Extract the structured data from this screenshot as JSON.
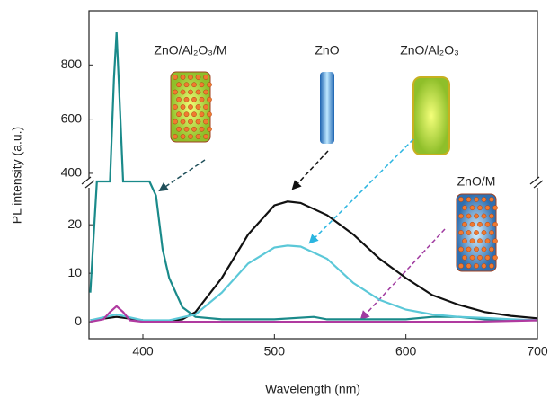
{
  "chart_data": {
    "type": "line",
    "x_label": "Wavelength (nm)",
    "y_label": "PL intensity (a.u.)",
    "xlim": [
      359,
      700
    ],
    "xticks": [
      400,
      500,
      600,
      700
    ],
    "ylim": [
      -3.5,
      1000
    ],
    "ybreak": [
      28,
      360
    ],
    "yticks": [
      0,
      10,
      20,
      400,
      600,
      800
    ],
    "series": [
      {
        "name": "ZnO/Al₂O₃/M",
        "color": "#1a8a8a",
        "x": [
          360,
          365,
          370,
          375,
          378,
          380,
          382,
          385,
          390,
          395,
          400,
          405,
          410,
          415,
          420,
          430,
          440,
          460,
          500,
          530,
          540,
          560,
          600,
          620,
          640,
          660,
          700
        ],
        "values": [
          6,
          370,
          370,
          370,
          750,
          920,
          700,
          370,
          370,
          370,
          370,
          370,
          26,
          15,
          9,
          3,
          1,
          0.5,
          0.5,
          1,
          0.5,
          0.5,
          0.5,
          1,
          1,
          0.5,
          0.3
        ]
      },
      {
        "name": "ZnO",
        "color": "#111111",
        "x": [
          360,
          380,
          400,
          420,
          430,
          440,
          460,
          480,
          500,
          510,
          520,
          540,
          560,
          580,
          600,
          620,
          640,
          660,
          680,
          700
        ],
        "values": [
          0.3,
          1,
          0.3,
          0.2,
          0.5,
          2,
          9,
          18,
          24,
          24.8,
          24.5,
          22,
          18,
          13,
          9,
          5.5,
          3.5,
          2,
          1.2,
          0.7
        ]
      },
      {
        "name": "ZnO/Al₂O₃",
        "color": "#5bc8d8",
        "x": [
          360,
          380,
          400,
          420,
          440,
          460,
          480,
          500,
          510,
          520,
          540,
          560,
          580,
          600,
          620,
          640,
          660,
          680,
          700
        ],
        "values": [
          0.3,
          1.5,
          0.3,
          0.3,
          1.5,
          6,
          12,
          15.3,
          15.7,
          15.5,
          13,
          8,
          4.5,
          2.5,
          1.5,
          1,
          0.8,
          0.5,
          0.3
        ]
      },
      {
        "name": "ZnO/M",
        "color": "#b03aa0",
        "x": [
          360,
          370,
          375,
          380,
          385,
          390,
          400,
          450,
          500,
          550,
          600,
          650,
          700
        ],
        "values": [
          0,
          0.5,
          2,
          3.2,
          2,
          0.3,
          0,
          0,
          0,
          0,
          0,
          0,
          0.3
        ]
      }
    ]
  }
}
